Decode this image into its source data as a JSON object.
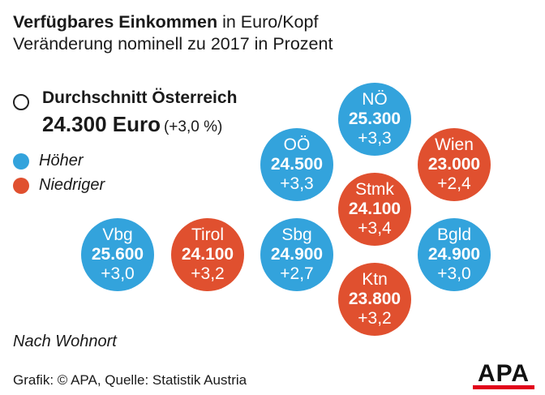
{
  "header": {
    "title_bold": "Verfügbares Einkommen",
    "title_rest": " in Euro/Kopf",
    "subtitle": "Veränderung nominell zu 2017 in Prozent"
  },
  "average": {
    "label": "Durchschnitt Österreich",
    "value": "24.300 Euro",
    "change": "(+3,0 %)"
  },
  "legend": {
    "higher": "Höher",
    "lower": "Niedriger"
  },
  "colors": {
    "higher": "#33a3dc",
    "lower": "#e0502f"
  },
  "note": "Nach Wohnort",
  "source": "Grafik: © APA, Quelle: Statistik Austria",
  "logo": "APA",
  "chart_data": {
    "type": "bubble-grid",
    "title": "Verfügbares Einkommen in Euro/Kopf",
    "subtitle": "Veränderung nominell zu 2017 in Prozent",
    "unit": "Euro",
    "average": {
      "name": "Durchschnitt Österreich",
      "value": 24300,
      "change": 3.0
    },
    "regions": [
      {
        "name": "NÖ",
        "value_label": "25.300",
        "change_label": "+3,3",
        "value": 25300,
        "change": 3.3,
        "category": "higher"
      },
      {
        "name": "OÖ",
        "value_label": "24.500",
        "change_label": "+3,3",
        "value": 24500,
        "change": 3.3,
        "category": "higher"
      },
      {
        "name": "Wien",
        "value_label": "23.000",
        "change_label": "+2,4",
        "value": 23000,
        "change": 2.4,
        "category": "lower"
      },
      {
        "name": "Stmk",
        "value_label": "24.100",
        "change_label": "+3,4",
        "value": 24100,
        "change": 3.4,
        "category": "lower"
      },
      {
        "name": "Vbg",
        "value_label": "25.600",
        "change_label": "+3,0",
        "value": 25600,
        "change": 3.0,
        "category": "higher"
      },
      {
        "name": "Tirol",
        "value_label": "24.100",
        "change_label": "+3,2",
        "value": 24100,
        "change": 3.2,
        "category": "lower"
      },
      {
        "name": "Sbg",
        "value_label": "24.900",
        "change_label": "+2,7",
        "value": 24900,
        "change": 2.7,
        "category": "higher"
      },
      {
        "name": "Bgld",
        "value_label": "24.900",
        "change_label": "+3,0",
        "value": 24900,
        "change": 3.0,
        "category": "higher"
      },
      {
        "name": "Ktn",
        "value_label": "23.800",
        "change_label": "+3,2",
        "value": 23800,
        "change": 3.2,
        "category": "lower"
      }
    ]
  }
}
